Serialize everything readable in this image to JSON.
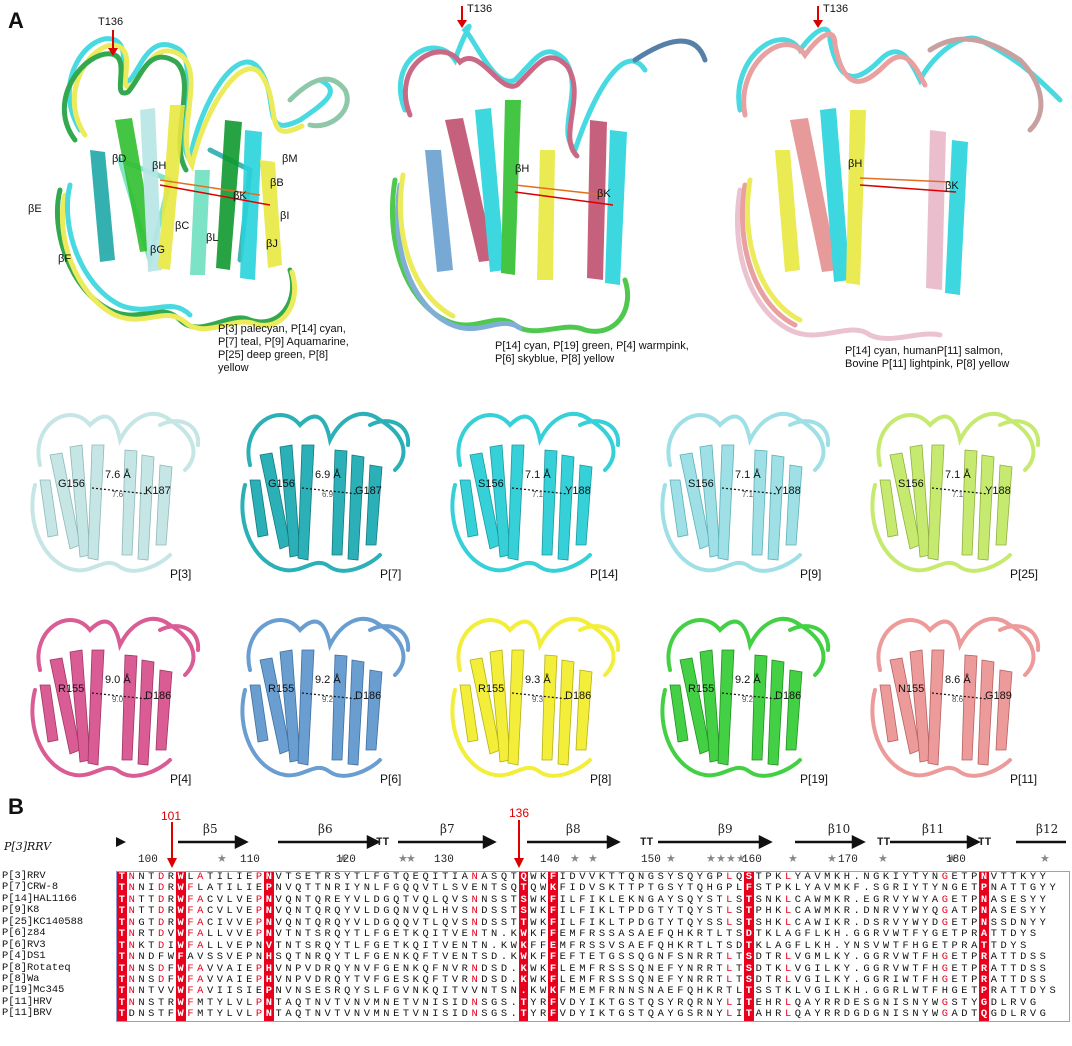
{
  "panel_a": {
    "letter": "A",
    "superpositions": [
      {
        "marker": "T136",
        "strand_labels": [
          "βD",
          "βH",
          "βM",
          "βB",
          "βK",
          "βE",
          "βC",
          "βI",
          "βL",
          "βG",
          "βJ",
          "βF"
        ],
        "caption": "P[3] palecyan, P[14] cyan,\nP[7] teal, P[9] Aquamarine,\nP[25] deep green, P[8] yellow",
        "colors": [
          "#b8e6e6",
          "#29d3dc",
          "#20a8a8",
          "#6fe0c0",
          "#109a30",
          "#e8e840"
        ]
      },
      {
        "marker": "T136",
        "strand_labels": [
          "βH",
          "βK"
        ],
        "caption": "P[14] cyan, P[19] green, P[4] warmpink,\nP[6] skyblue, P[8] yellow",
        "colors": [
          "#29d3dc",
          "#30c030",
          "#c05070",
          "#6aa0d0",
          "#e8e840"
        ]
      },
      {
        "marker": "T136",
        "strand_labels": [
          "βH",
          "βK"
        ],
        "caption": "P[14] cyan, humanP[11] salmon,\nBovine P[11] lightpink, P[8] yellow",
        "colors": [
          "#29d3dc",
          "#e59090",
          "#e8b8c8",
          "#e8e840"
        ]
      }
    ],
    "structures": [
      {
        "name": "P[3]",
        "res1": "G156",
        "res2": "K187",
        "dist": "7.6 Å",
        "dist_small": "7.6",
        "color": "#c6e6e6",
        "stroke": "#8fb8b8"
      },
      {
        "name": "P[7]",
        "res1": "G156",
        "res2": "G187",
        "dist": "6.9 Å",
        "dist_small": "6.9",
        "color": "#2ab0b6",
        "stroke": "#137a80"
      },
      {
        "name": "P[14]",
        "res1": "S156",
        "res2": "Y188",
        "dist": "7.1 Å",
        "dist_small": "7.1",
        "color": "#35d0d8",
        "stroke": "#1b9aa0"
      },
      {
        "name": "P[9]",
        "res1": "S156",
        "res2": "Y188",
        "dist": "7.1 Å",
        "dist_small": "7.1",
        "color": "#9ee0e6",
        "stroke": "#5eb0b8"
      },
      {
        "name": "P[25]",
        "res1": "S156",
        "res2": "Y188",
        "dist": "7.1 Å",
        "dist_small": "7.1",
        "color": "#c6ea70",
        "stroke": "#8fb040"
      },
      {
        "name": "P[4]",
        "res1": "R155",
        "res2": "D186",
        "dist": "9.0 Å",
        "dist_small": "9.0",
        "color": "#d95c95",
        "stroke": "#a03565"
      },
      {
        "name": "P[6]",
        "res1": "R155",
        "res2": "D186",
        "dist": "9.2 Å",
        "dist_small": "9.2",
        "color": "#6a9ed0",
        "stroke": "#3e6fa0"
      },
      {
        "name": "P[8]",
        "res1": "R155",
        "res2": "D186",
        "dist": "9.3 Å",
        "dist_small": "9.3",
        "color": "#f2ee3a",
        "stroke": "#b8b010"
      },
      {
        "name": "P[19]",
        "res1": "R155",
        "res2": "D186",
        "dist": "9.2 Å",
        "dist_small": "9.2",
        "color": "#44d044",
        "stroke": "#209020"
      },
      {
        "name": "P[11]",
        "res1": "N155",
        "res2": "G189",
        "dist": "8.6 Å",
        "dist_small": "8.6",
        "color": "#ec9a9a",
        "stroke": "#b86060"
      }
    ]
  },
  "panel_b": {
    "letter": "B",
    "reference": "P[3]RRV",
    "markers": [
      {
        "label": "101"
      },
      {
        "label": "136"
      }
    ],
    "ss_labels": [
      "β5",
      "β6",
      "β7",
      "β8",
      "β9",
      "β10",
      "β11",
      "β12"
    ],
    "turn_label": "TT",
    "ruler": [
      "100",
      "110",
      "120",
      "130",
      "140",
      "150",
      "160",
      "170",
      "180"
    ],
    "names": [
      "P[3]RRV",
      "P[7]CRW-8",
      "P[14]HAL1166",
      "P[9]K8",
      "P[25]KC140588",
      "P[6]z84",
      "P[6]RV3",
      "P[4]DS1",
      "P[8]Rotateq",
      "P[8]Wa",
      "P[19]Mc345",
      "P[11]HRV",
      "P[11]BRV"
    ],
    "sequences": [
      "TNNTDRWLATILIEPNVTSETRSYTLFGTQEQITIANASQTQWKFIDVVKTTQNGSYSQYGPLQSTPKLYAVMKH.NGKIYTYNGETPNVTTKYY",
      "TNNIDRWFLATILIEPNVQTTNRIYNLFGQQVTLSVENTSQTQWKFIDVSKTTPTGSYTQHGPLFSTPKLYAVMKF.SGRIYTYNGETPNATTGYY",
      "TNTTDRWFACVLVEPNVQNTQREYVLDGQTVQLQVSNNSSTSWKFILFIKLEKNGAYSQYSTLSTSNKLCAWMKR.EGRVYWYAGETPNASESYY",
      "TNTTDRWFACVLVEPNVQNTQRQYVLDGQNVQLHVSNDSSTSWKFILFIKLTPDGTYTQYSTLSTPHKLCAWMKR.DNRVYWYQGATPNASESYY",
      "TNGTDRWFACIVVEPNVQNTQRQYVLDGQQVTLQVSNDSSTTWKFILFIKLTPDGTYTQYSSLSTSHKLCAWIKR.DSRVYWYDGETPNSSDNYY",
      "TNRTDVWFALLVVEPNVTNTSRQYTLFGETKQITVENTN.KWKFFEMFRSSASAEFQHKRTLTSDTKLAGFLKH.GGRVWTFYGETPRATTDYS",
      "TNKTDIWFALLVEPNVTNTSRQYTLFGETKQITVENTN.KWKFFEMFRSSVSAEFQHKRTLTSDTKLAGFLKH.YNSVWTFHGETPRATTDYS",
      "TNNDFWFAVSSVEPNHSQTNRQYTLFGENKQFTVENTSD.KWKFFEFTETGSSQGNFSNRRTLTSDTRLVGMLKY.GGRVWTFHGETPRATTDSS",
      "TNNSDFWFAVVAIEPHVNPVDRQYNVFGENKQFNVRNDSD.KWKFLEMFRSSSQNEFYNRRTLTSDTKLVGILKY.GGRVWTFHGETPRATTDSS",
      "TNNSDFWFAVVAIEPHVNPVDRQYTVFGESKQFTVRNDSD.KWKFLEMFRSSSQNEFYNRRTLTSDTRLVGILKY.GGRIWTFHGETPRATTDSS",
      "TNNTVVWFAVIISIEPNVNSESRQYSLFGVNKQITVVNTSN.KWKFMEMFRNNSNAEFQHKRTLTSSTKLVGILKH.GGRLWTFHGETPRATTDYS",
      "TNNSTRWFMTYLVLPNTAQTNVTVNVMNETVNISIDNSGS.TYRFVDYIKTGSTQSYRQRNYLITEHRLQAYRRDESGNISNYWGSTYGDLRVG",
      "TDNSTFWFMTYLVLPNTAQTNVTVNVMNETVNISIDNSGS.TYRFVDYIKTGSTQAYGSRNYLITAHRLQAYRRDGDGNISNYWGADTQGDLRVG"
    ]
  }
}
